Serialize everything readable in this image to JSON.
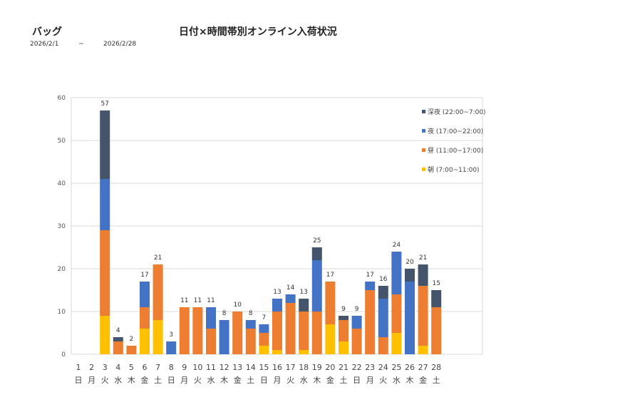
{
  "header": {
    "category": "バッグ",
    "title": "日付×時間帯別オンライン入荷状況",
    "date_from": "2026/2/1",
    "date_sep": "~",
    "date_to": "2026/2/28"
  },
  "chart_data": {
    "type": "bar",
    "stacked": true,
    "categories": [
      "1",
      "2",
      "3",
      "4",
      "5",
      "6",
      "7",
      "8",
      "9",
      "10",
      "11",
      "12",
      "13",
      "14",
      "15",
      "16",
      "17",
      "18",
      "19",
      "20",
      "21",
      "22",
      "23",
      "24",
      "25",
      "26",
      "27",
      "28"
    ],
    "weekdays": [
      "日",
      "月",
      "火",
      "水",
      "木",
      "金",
      "土",
      "日",
      "月",
      "火",
      "水",
      "木",
      "金",
      "土",
      "日",
      "月",
      "火",
      "水",
      "木",
      "金",
      "土",
      "日",
      "月",
      "火",
      "水",
      "木",
      "金",
      "土"
    ],
    "ylim": [
      0,
      60
    ],
    "yticks": [
      0,
      10,
      20,
      30,
      40,
      50,
      60
    ],
    "grid": true,
    "legend_position": "right",
    "series": [
      {
        "name": "朝 (7:00~11:00)",
        "color": "#FFC000",
        "values": [
          0,
          0,
          9,
          0,
          0,
          6,
          8,
          0,
          0,
          0,
          0,
          0,
          0,
          0,
          2,
          1,
          0,
          1,
          0,
          7,
          3,
          0,
          0,
          0,
          5,
          0,
          2,
          0
        ]
      },
      {
        "name": "昼 (11:00~17:00)",
        "color": "#ED7D31",
        "values": [
          0,
          0,
          20,
          3,
          2,
          5,
          13,
          0,
          11,
          11,
          6,
          0,
          10,
          6,
          3,
          9,
          12,
          9,
          10,
          10,
          5,
          6,
          15,
          4,
          9,
          0,
          14,
          11
        ]
      },
      {
        "name": "夜 (17:00~22:00)",
        "color": "#4472C4",
        "values": [
          0,
          0,
          12,
          0,
          0,
          6,
          0,
          3,
          0,
          0,
          5,
          8,
          0,
          2,
          2,
          3,
          2,
          0,
          12,
          0,
          0,
          3,
          2,
          9,
          10,
          17,
          0,
          0
        ]
      },
      {
        "name": "深夜 (22:00~7:00)",
        "color": "#44546A",
        "values": [
          0,
          0,
          16,
          1,
          0,
          0,
          0,
          0,
          0,
          0,
          0,
          0,
          0,
          0,
          0,
          0,
          0,
          3,
          3,
          0,
          1,
          0,
          0,
          3,
          0,
          3,
          5,
          4
        ]
      }
    ],
    "totals": [
      null,
      null,
      57,
      4,
      2,
      17,
      21,
      3,
      11,
      11,
      11,
      8,
      10,
      8,
      7,
      13,
      14,
      13,
      25,
      17,
      9,
      9,
      17,
      16,
      24,
      20,
      21,
      15
    ]
  }
}
